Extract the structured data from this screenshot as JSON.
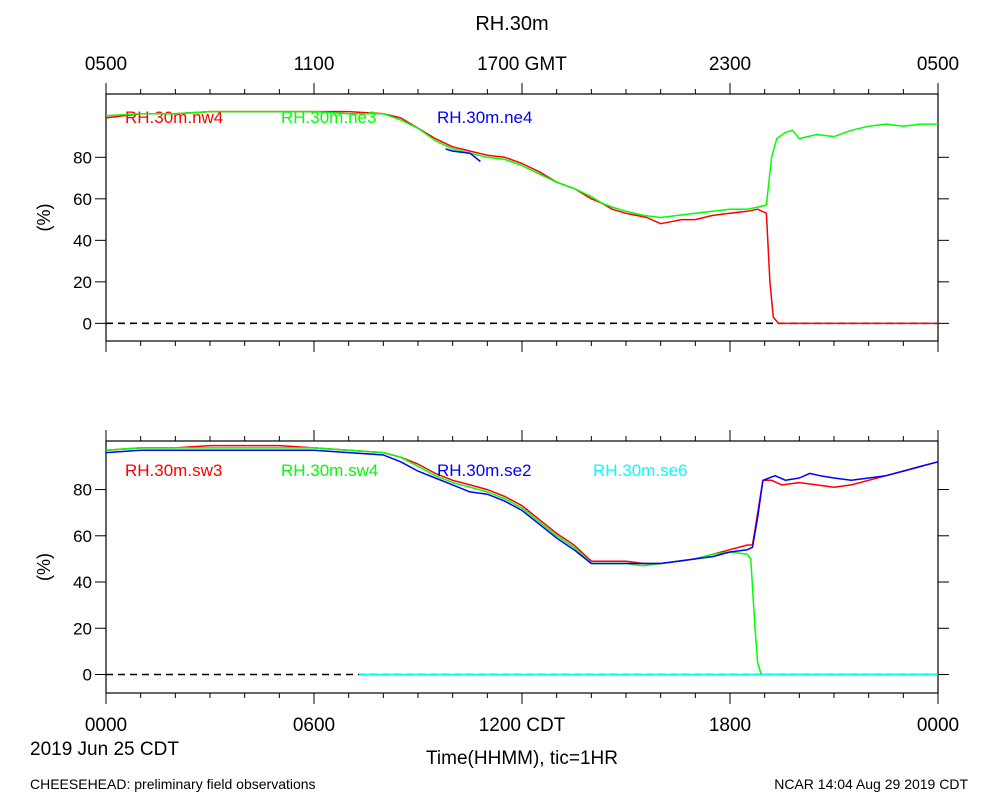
{
  "title": "RH.30m",
  "top_axis": {
    "tick_labels": [
      "0500",
      "1100",
      "1700 GMT",
      "2300",
      "0500"
    ]
  },
  "bottom_axis": {
    "tick_labels": [
      "0000",
      "0600",
      "1200 CDT",
      "1800",
      "0000"
    ],
    "date_label": "2019 Jun 25 CDT",
    "xlabel": "Time(HHMM), tic=1HR"
  },
  "footer": {
    "left": "CHEESEHEAD: preliminary field observations",
    "right": "NCAR 14:04 Aug 29 2019 CDT"
  },
  "colors": {
    "red": "#ff0000",
    "green": "#00ff00",
    "blue": "#0000ff",
    "cyan": "#00ffff"
  },
  "chart_data": [
    {
      "type": "line",
      "ylabel": "(%)",
      "yticks": [
        0,
        20,
        40,
        60,
        80
      ],
      "ylim": [
        -8.5,
        110.5
      ],
      "xlim": [
        0,
        24
      ],
      "x_unit": "hours CDT",
      "zero_line": true,
      "series": [
        {
          "name": "RH.30m.nw4",
          "color": "#ff0000",
          "points": [
            [
              0,
              99
            ],
            [
              0.5,
              100
            ],
            [
              1,
              101
            ],
            [
              2,
              101
            ],
            [
              3,
              102
            ],
            [
              4,
              102
            ],
            [
              5,
              102
            ],
            [
              6,
              102
            ],
            [
              7,
              102
            ],
            [
              8,
              101
            ],
            [
              8.5,
              99
            ],
            [
              9,
              94
            ],
            [
              9.5,
              89
            ],
            [
              10,
              85
            ],
            [
              10.5,
              83
            ],
            [
              11,
              81
            ],
            [
              11.5,
              80
            ],
            [
              12,
              77
            ],
            [
              12.5,
              73
            ],
            [
              13,
              68
            ],
            [
              13.5,
              65
            ],
            [
              14,
              60
            ],
            [
              14.3,
              58
            ],
            [
              14.6,
              55
            ],
            [
              15,
              53
            ],
            [
              15.3,
              52
            ],
            [
              15.6,
              51
            ],
            [
              16,
              48
            ],
            [
              16.3,
              49
            ],
            [
              16.6,
              50
            ],
            [
              17,
              50
            ],
            [
              17.5,
              52
            ],
            [
              18,
              53
            ],
            [
              18.5,
              54
            ],
            [
              18.8,
              55
            ],
            [
              19.05,
              53
            ],
            [
              19.15,
              20
            ],
            [
              19.25,
              3
            ],
            [
              19.4,
              0
            ],
            [
              24,
              0
            ]
          ]
        },
        {
          "name": "RH.30m.ne3",
          "color": "#00ff00",
          "points": [
            [
              0,
              100
            ],
            [
              1,
              101
            ],
            [
              2,
              101
            ],
            [
              3,
              102
            ],
            [
              4,
              102
            ],
            [
              5,
              102
            ],
            [
              6,
              102
            ],
            [
              7,
              101
            ],
            [
              8,
              101
            ],
            [
              8.5,
              98
            ],
            [
              9,
              94
            ],
            [
              9.5,
              88
            ],
            [
              10,
              84
            ],
            [
              10.5,
              82
            ],
            [
              11,
              80
            ],
            [
              11.5,
              79
            ],
            [
              12,
              76
            ],
            [
              12.5,
              72
            ],
            [
              13,
              68
            ],
            [
              13.5,
              65
            ],
            [
              14,
              61
            ],
            [
              14.3,
              58
            ],
            [
              14.6,
              56
            ],
            [
              15,
              54
            ],
            [
              15.5,
              52
            ],
            [
              16,
              51
            ],
            [
              16.5,
              52
            ],
            [
              17,
              53
            ],
            [
              17.5,
              54
            ],
            [
              18,
              55
            ],
            [
              18.5,
              55
            ],
            [
              18.8,
              56
            ],
            [
              19.05,
              57
            ],
            [
              19.2,
              80
            ],
            [
              19.35,
              89
            ],
            [
              19.6,
              92
            ],
            [
              19.8,
              93
            ],
            [
              20,
              89
            ],
            [
              20.5,
              91
            ],
            [
              21,
              90
            ],
            [
              21.5,
              93
            ],
            [
              22,
              95
            ],
            [
              22.5,
              96
            ],
            [
              23,
              95
            ],
            [
              23.5,
              96
            ],
            [
              24,
              96
            ]
          ]
        },
        {
          "name": "RH.30m.ne4",
          "color": "#0000ff",
          "points": [
            [
              9.8,
              84
            ],
            [
              10,
              83
            ],
            [
              10.5,
              82
            ],
            [
              10.8,
              78
            ]
          ]
        }
      ]
    },
    {
      "type": "line",
      "ylabel": "(%)",
      "yticks": [
        0,
        20,
        40,
        60,
        80
      ],
      "ylim": [
        -8,
        101
      ],
      "xlim": [
        0,
        24
      ],
      "x_unit": "hours CDT",
      "zero_line": true,
      "series": [
        {
          "name": "RH.30m.sw3",
          "color": "#ff0000",
          "points": [
            [
              0,
              97
            ],
            [
              1,
              98
            ],
            [
              2,
              98
            ],
            [
              3,
              99
            ],
            [
              4,
              99
            ],
            [
              5,
              99
            ],
            [
              6,
              98
            ],
            [
              7,
              97
            ],
            [
              8,
              96
            ],
            [
              8.5,
              94
            ],
            [
              9,
              91
            ],
            [
              9.5,
              87
            ],
            [
              10,
              84
            ],
            [
              10.5,
              82
            ],
            [
              11,
              80
            ],
            [
              11.5,
              77
            ],
            [
              12,
              73
            ],
            [
              12.5,
              67
            ],
            [
              13,
              61
            ],
            [
              13.5,
              56
            ],
            [
              14,
              49
            ],
            [
              14.5,
              49
            ],
            [
              15,
              49
            ],
            [
              15.5,
              48
            ],
            [
              16,
              48
            ],
            [
              16.5,
              49
            ],
            [
              17,
              50
            ],
            [
              17.5,
              52
            ],
            [
              18,
              54
            ],
            [
              18.5,
              56
            ],
            [
              18.65,
              56
            ],
            [
              18.8,
              70
            ],
            [
              18.95,
              84
            ],
            [
              19.2,
              84
            ],
            [
              19.5,
              82
            ],
            [
              20,
              83
            ],
            [
              20.5,
              82
            ],
            [
              21,
              81
            ],
            [
              21.5,
              82
            ],
            [
              22,
              84
            ],
            [
              22.5,
              86
            ],
            [
              23,
              88
            ],
            [
              23.5,
              90
            ],
            [
              24,
              92
            ]
          ]
        },
        {
          "name": "RH.30m.sw4",
          "color": "#00ff00",
          "points": [
            [
              0,
              97
            ],
            [
              1,
              98
            ],
            [
              2,
              98
            ],
            [
              3,
              98
            ],
            [
              4,
              98
            ],
            [
              5,
              98
            ],
            [
              6,
              98
            ],
            [
              7,
              97
            ],
            [
              8,
              96
            ],
            [
              8.5,
              94
            ],
            [
              9,
              90
            ],
            [
              9.5,
              86
            ],
            [
              10,
              83
            ],
            [
              10.5,
              81
            ],
            [
              11,
              79
            ],
            [
              11.5,
              76
            ],
            [
              12,
              72
            ],
            [
              12.5,
              66
            ],
            [
              13,
              60
            ],
            [
              13.5,
              55
            ],
            [
              14,
              48
            ],
            [
              14.5,
              48
            ],
            [
              15,
              48
            ],
            [
              15.5,
              47
            ],
            [
              16,
              48
            ],
            [
              16.5,
              49
            ],
            [
              17,
              50
            ],
            [
              17.5,
              52
            ],
            [
              18,
              53
            ],
            [
              18.5,
              52
            ],
            [
              18.6,
              50
            ],
            [
              18.72,
              20
            ],
            [
              18.8,
              5
            ],
            [
              18.9,
              0
            ],
            [
              24,
              0
            ]
          ]
        },
        {
          "name": "RH.30m.se2",
          "color": "#0000ff",
          "points": [
            [
              0,
              96
            ],
            [
              1,
              97
            ],
            [
              2,
              97
            ],
            [
              3,
              97
            ],
            [
              4,
              97
            ],
            [
              5,
              97
            ],
            [
              6,
              97
            ],
            [
              7,
              96
            ],
            [
              8,
              95
            ],
            [
              8.5,
              92
            ],
            [
              9,
              88
            ],
            [
              9.5,
              85
            ],
            [
              10,
              82
            ],
            [
              10.5,
              79
            ],
            [
              11,
              78
            ],
            [
              11.5,
              75
            ],
            [
              12,
              71
            ],
            [
              12.5,
              65
            ],
            [
              13,
              59
            ],
            [
              13.5,
              54
            ],
            [
              14,
              48
            ],
            [
              14.5,
              48
            ],
            [
              15,
              48
            ],
            [
              15.5,
              48
            ],
            [
              16,
              48
            ],
            [
              16.5,
              49
            ],
            [
              17,
              50
            ],
            [
              17.5,
              51
            ],
            [
              18,
              53
            ],
            [
              18.5,
              54
            ],
            [
              18.65,
              55
            ],
            [
              18.8,
              68
            ],
            [
              18.95,
              84
            ],
            [
              19.3,
              86
            ],
            [
              19.6,
              84
            ],
            [
              20,
              85
            ],
            [
              20.3,
              87
            ],
            [
              20.6,
              86
            ],
            [
              21,
              85
            ],
            [
              21.5,
              84
            ],
            [
              22,
              85
            ],
            [
              22.5,
              86
            ],
            [
              23,
              88
            ],
            [
              23.5,
              90
            ],
            [
              24,
              92
            ]
          ]
        },
        {
          "name": "RH.30m.se6",
          "color": "#00ffff",
          "points": [
            [
              7.3,
              0
            ],
            [
              24,
              0
            ]
          ]
        }
      ]
    }
  ]
}
